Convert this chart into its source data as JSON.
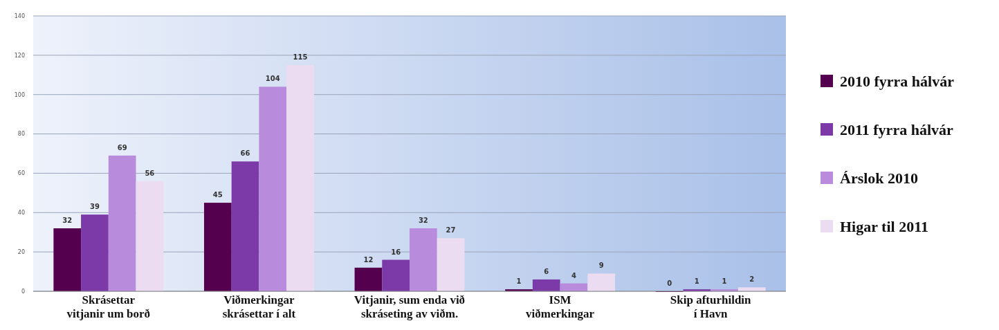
{
  "chart_data": {
    "type": "bar",
    "categories": [
      "Skrásettar\nvitjanir um borð",
      "Viðmerkingar\nskrásettar í alt",
      "Vitjanir, sum enda við\nskráseting av viðm.",
      "ISM\nviðmerkingar",
      "Skip afturhildin\ní Havn"
    ],
    "series": [
      {
        "name": "2010 fyrra hálvár",
        "color": "#55004f",
        "values": [
          32,
          45,
          12,
          1,
          0
        ]
      },
      {
        "name": "2011 fyrra hálvár",
        "color": "#7b3aa8",
        "values": [
          39,
          66,
          16,
          6,
          1
        ]
      },
      {
        "name": "Árslok 2010",
        "color": "#b98bdc",
        "values": [
          69,
          104,
          32,
          4,
          1
        ]
      },
      {
        "name": "Higar til 2011",
        "color": "#ecdcf2",
        "values": [
          56,
          115,
          27,
          9,
          2
        ]
      }
    ],
    "ylim": [
      0,
      140
    ],
    "yticks": [
      0,
      20,
      40,
      60,
      80,
      100,
      120,
      140
    ],
    "grid": "y",
    "legend": "right",
    "data_labels": true
  }
}
